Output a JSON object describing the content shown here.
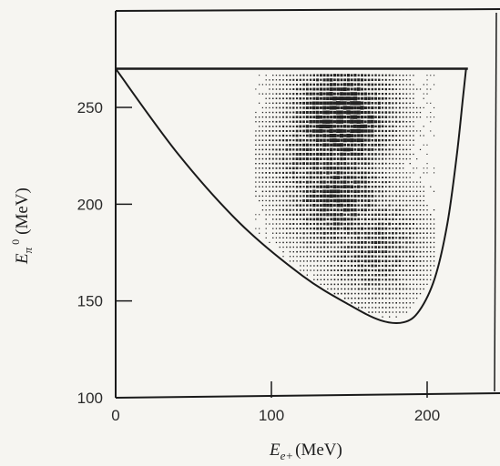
{
  "chart_data": {
    "type": "scatter",
    "title": "",
    "xlabel": {
      "symbol": "E",
      "subscript": "e+",
      "unit": "(MeV)"
    },
    "ylabel": {
      "symbol": "E",
      "subscript": "π",
      "superscript": "0",
      "unit": "(MeV)"
    },
    "xlim": [
      0,
      245
    ],
    "ylim": [
      100,
      290
    ],
    "x_ticks": [
      {
        "value": 0,
        "label": "0"
      },
      {
        "value": 100,
        "label": "100"
      },
      {
        "value": 200,
        "label": "200"
      }
    ],
    "y_ticks": [
      {
        "value": 100,
        "label": "100"
      },
      {
        "value": 150,
        "label": "150"
      },
      {
        "value": 200,
        "label": "200"
      },
      {
        "value": 250,
        "label": "250"
      }
    ],
    "grid": false,
    "legend": "none",
    "kinematic_boundary": {
      "upper_edge_y": 270,
      "lower_curve": [
        [
          0,
          270
        ],
        [
          40,
          226
        ],
        [
          80,
          190
        ],
        [
          120,
          163
        ],
        [
          150,
          148
        ],
        [
          170,
          140
        ],
        [
          185,
          139
        ],
        [
          195,
          145
        ],
        [
          205,
          162
        ],
        [
          213,
          190
        ],
        [
          219,
          225
        ],
        [
          223,
          255
        ],
        [
          225,
          270
        ]
      ]
    },
    "density": {
      "x_range": [
        90,
        205
      ],
      "y_range": [
        137,
        268
      ],
      "peaks": [
        {
          "x": 145,
          "y": 245,
          "weight": 1.0
        },
        {
          "x": 142,
          "y": 205,
          "weight": 0.75
        },
        {
          "x": 165,
          "y": 180,
          "weight": 0.55
        },
        {
          "x": 130,
          "y": 225,
          "weight": 0.6
        }
      ]
    },
    "colors": {
      "ink": "#1a1a1a",
      "paper": "#f6f5f1",
      "dot": "#222222"
    }
  }
}
